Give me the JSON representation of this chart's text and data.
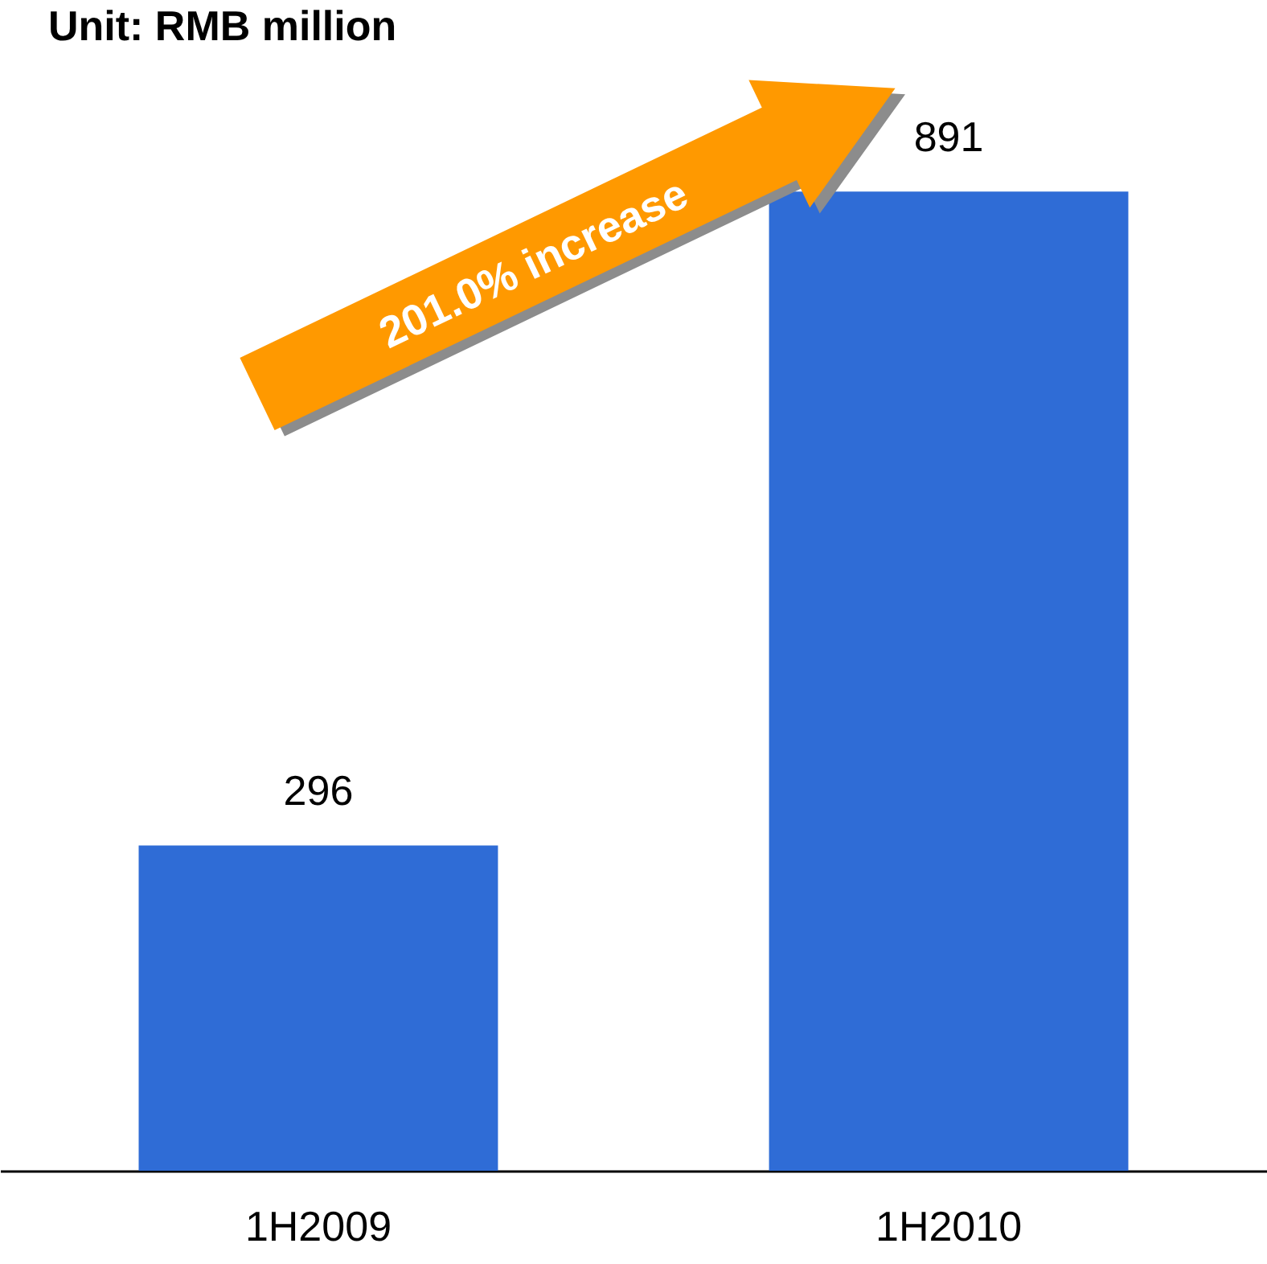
{
  "chart_data": {
    "type": "bar",
    "title": "Unit: RMB million",
    "categories": [
      "1H2009",
      "1H2010"
    ],
    "values": [
      296,
      891
    ],
    "color": "#2f6cd6",
    "data_labels": true,
    "annotations": [
      "201.0% increase"
    ]
  }
}
